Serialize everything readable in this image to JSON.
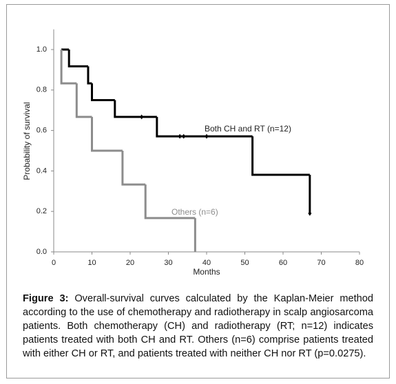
{
  "chart_data": {
    "type": "step",
    "ylabel": "Probability of survival",
    "xlabel": "Months",
    "xlim": [
      0,
      80
    ],
    "xticks": [
      0,
      10,
      20,
      30,
      40,
      50,
      60,
      70,
      80
    ],
    "ylim": [
      0,
      1.1
    ],
    "yticks": [
      {
        "value": 0,
        "label": "0.0"
      },
      0.2,
      0.4,
      0.6,
      0.8,
      {
        "value": 1,
        "label": "1.0"
      }
    ],
    "grid": false,
    "series": [
      {
        "name": "Both CH and RT (n=12)",
        "color": "#000000",
        "width": 3,
        "x": [
          2,
          4,
          9,
          10,
          16,
          27,
          52,
          67
        ],
        "values": [
          1.0,
          0.917,
          0.833,
          0.75,
          0.667,
          0.571,
          0.381,
          0.19
        ],
        "censored": [
          23,
          33,
          34,
          40,
          67
        ]
      },
      {
        "name": "Others (n=6)",
        "color": "#8c8c8c",
        "width": 3,
        "x": [
          2,
          2,
          6,
          10,
          18,
          24,
          37
        ],
        "values": [
          1.0,
          0.833,
          0.667,
          0.5,
          0.333,
          0.167,
          0.0
        ],
        "censored": []
      }
    ]
  },
  "caption": {
    "label": "Figure 3:",
    "text": "Overall-survival curves calculated by the Kaplan-Meier method according to the use of chemotherapy and radiotherapy in scalp angiosarcoma patients. Both chemotherapy (CH) and radiotherapy (RT; n=12) indicates patients treated with both CH and RT. Others (n=6) comprise patients treated with either CH or RT, and patients treated with neither CH nor RT (p=0.0275)."
  }
}
